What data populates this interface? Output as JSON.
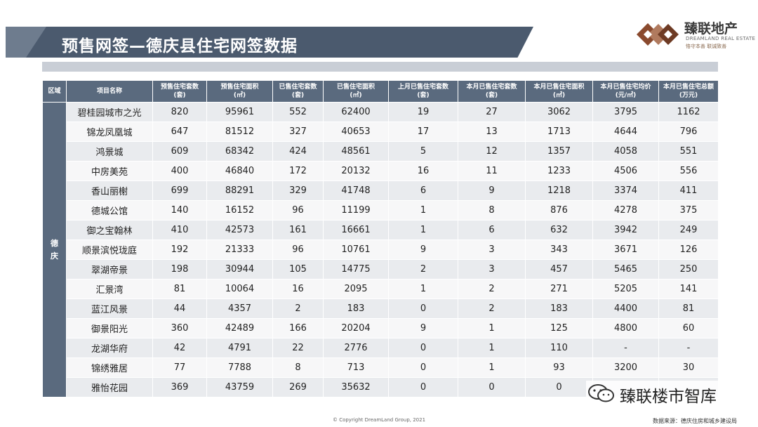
{
  "header": {
    "title": "预售网签—德庆县住宅网签数据"
  },
  "logo": {
    "name": "臻联地产",
    "english": "DREAMLAND REAL ESTATE",
    "tagline": "恪守本善  联诚致善"
  },
  "table": {
    "columns": [
      "区域",
      "项目名称",
      "预售住宅套数\n(套)",
      "预售住宅面积\n(㎡)",
      "已售住宅套数\n(套)",
      "已售住宅面积\n(㎡)",
      "上月已售住宅套数\n(套)",
      "本月已售住宅套数\n(套)",
      "本月已售住宅面积\n(㎡)",
      "本月已售住宅均价\n(元/㎡)",
      "本月已售住宅总额\n(万元)"
    ],
    "region": "德\n庆",
    "rows": [
      [
        "碧桂园城市之光",
        "820",
        "95961",
        "552",
        "62400",
        "19",
        "27",
        "3062",
        "3795",
        "1162"
      ],
      [
        "锦龙凤凰城",
        "647",
        "81512",
        "327",
        "40653",
        "17",
        "13",
        "1713",
        "4644",
        "796"
      ],
      [
        "鸿景城",
        "609",
        "68342",
        "424",
        "48561",
        "5",
        "12",
        "1357",
        "4058",
        "551"
      ],
      [
        "中房美苑",
        "400",
        "46840",
        "172",
        "20132",
        "16",
        "11",
        "1233",
        "4506",
        "556"
      ],
      [
        "香山丽榭",
        "699",
        "88291",
        "329",
        "41748",
        "6",
        "9",
        "1218",
        "3374",
        "411"
      ],
      [
        "德城公馆",
        "140",
        "16152",
        "96",
        "11199",
        "1",
        "8",
        "876",
        "4278",
        "375"
      ],
      [
        "御之宝翰林",
        "410",
        "42573",
        "161",
        "16661",
        "1",
        "6",
        "632",
        "3942",
        "249"
      ],
      [
        "顺景滨悦珑庭",
        "192",
        "21333",
        "96",
        "10761",
        "9",
        "3",
        "343",
        "3671",
        "126"
      ],
      [
        "翠湖帝景",
        "198",
        "30944",
        "105",
        "14775",
        "2",
        "3",
        "457",
        "5465",
        "250"
      ],
      [
        "汇景湾",
        "81",
        "10064",
        "16",
        "2095",
        "1",
        "2",
        "271",
        "5205",
        "141"
      ],
      [
        "蓝江风景",
        "44",
        "4357",
        "2",
        "183",
        "0",
        "2",
        "183",
        "4400",
        "81"
      ],
      [
        "御景阳光",
        "360",
        "42489",
        "166",
        "20204",
        "9",
        "1",
        "125",
        "4800",
        "60"
      ],
      [
        "龙湖华府",
        "42",
        "4791",
        "22",
        "2776",
        "0",
        "1",
        "110",
        "-",
        "-"
      ],
      [
        "锦绣雅居",
        "77",
        "7788",
        "8",
        "713",
        "0",
        "1",
        "93",
        "3200",
        "30"
      ],
      [
        "雅怡花园",
        "369",
        "43759",
        "269",
        "35632",
        "0",
        "0",
        "0",
        "",
        ""
      ]
    ]
  },
  "footer": {
    "copyright": "© Copyright  DreamLand  Group,  2021",
    "source": "数据来源：德庆住房和城乡建设局"
  },
  "watermark": {
    "text": "臻联楼市智库"
  },
  "colors": {
    "banner": "#4b5a6e",
    "header_cell": "#5a6a7e",
    "row_odd": "#e9ebee",
    "row_even": "#f7f7f8",
    "logo_brown": "#8a4a2e"
  }
}
